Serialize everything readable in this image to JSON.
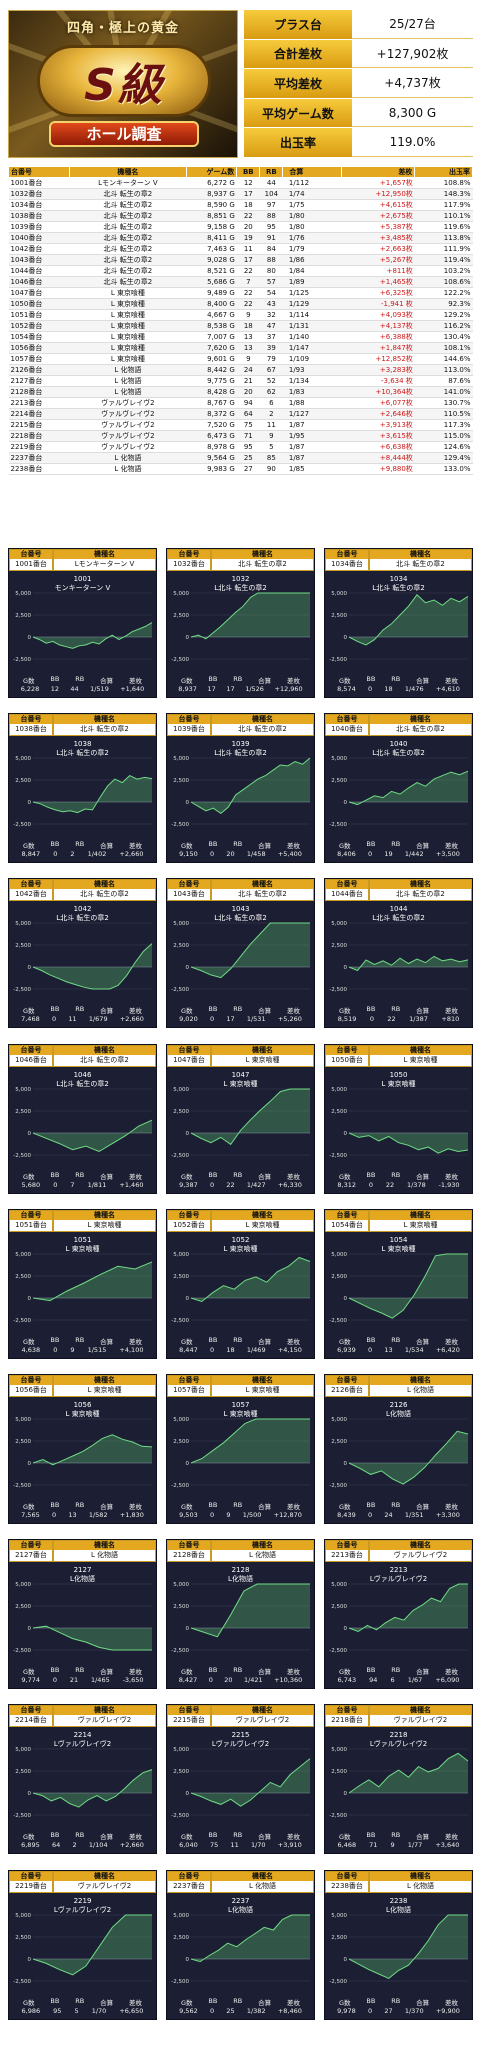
{
  "banner": {
    "subtitle": "四角・極上の黄金",
    "logo_text": "S級",
    "ribbon": "ホール調査"
  },
  "summary": [
    {
      "label": "プラス台",
      "value": "25/27台"
    },
    {
      "label": "合計差枚",
      "value": "+127,902枚"
    },
    {
      "label": "平均差枚",
      "value": "+4,737枚"
    },
    {
      "label": "平均ゲーム数",
      "value": "8,300 G"
    },
    {
      "label": "出玉率",
      "value": "119.0%"
    }
  ],
  "table": {
    "headers": [
      "台番号",
      "機種名",
      "ゲーム数",
      "BB",
      "RB",
      "合算",
      "差枚",
      "出玉率"
    ],
    "rows": [
      [
        "1001番台",
        "Lモンキーターン V",
        "6,272 G",
        "12",
        "44",
        "1/112",
        "+1,657枚",
        "108.8%"
      ],
      [
        "1032番台",
        "北斗 転生の章2",
        "8,937 G",
        "17",
        "104",
        "1/74",
        "+12,950枚",
        "148.3%"
      ],
      [
        "1034番台",
        "北斗 転生の章2",
        "8,590 G",
        "18",
        "97",
        "1/75",
        "+4,615枚",
        "117.9%"
      ],
      [
        "1038番台",
        "北斗 転生の章2",
        "8,851 G",
        "22",
        "88",
        "1/80",
        "+2,675枚",
        "110.1%"
      ],
      [
        "1039番台",
        "北斗 転生の章2",
        "9,158 G",
        "20",
        "95",
        "1/80",
        "+5,387枚",
        "119.6%"
      ],
      [
        "1040番台",
        "北斗 転生の章2",
        "8,411 G",
        "19",
        "91",
        "1/76",
        "+3,485枚",
        "113.8%"
      ],
      [
        "1042番台",
        "北斗 転生の章2",
        "7,463 G",
        "11",
        "84",
        "1/79",
        "+2,663枚",
        "111.9%"
      ],
      [
        "1043番台",
        "北斗 転生の章2",
        "9,028 G",
        "17",
        "88",
        "1/86",
        "+5,267枚",
        "119.4%"
      ],
      [
        "1044番台",
        "北斗 転生の章2",
        "8,521 G",
        "22",
        "80",
        "1/84",
        "+811枚",
        "103.2%"
      ],
      [
        "1046番台",
        "北斗 転生の章2",
        "5,686 G",
        "7",
        "57",
        "1/89",
        "+1,465枚",
        "108.6%"
      ],
      [
        "1047番台",
        "L 東京喰種",
        "9,489 G",
        "22",
        "54",
        "1/125",
        "+6,325枚",
        "122.2%"
      ],
      [
        "1050番台",
        "L 東京喰種",
        "8,400 G",
        "22",
        "43",
        "1/129",
        "-1,941 枚",
        "92.3%"
      ],
      [
        "1051番台",
        "L 東京喰種",
        "4,667 G",
        "9",
        "32",
        "1/114",
        "+4,093枚",
        "129.2%"
      ],
      [
        "1052番台",
        "L 東京喰種",
        "8,538 G",
        "18",
        "47",
        "1/131",
        "+4,137枚",
        "116.2%"
      ],
      [
        "1054番台",
        "L 東京喰種",
        "7,007 G",
        "13",
        "37",
        "1/140",
        "+6,388枚",
        "130.4%"
      ],
      [
        "1056番台",
        "L 東京喰種",
        "7,620 G",
        "13",
        "39",
        "1/147",
        "+1,847枚",
        "108.1%"
      ],
      [
        "1057番台",
        "L 東京喰種",
        "9,601 G",
        "9",
        "79",
        "1/109",
        "+12,852枚",
        "144.6%"
      ],
      [
        "2126番台",
        "L 化物語",
        "8,442 G",
        "24",
        "67",
        "1/93",
        "+3,283枚",
        "113.0%"
      ],
      [
        "2127番台",
        "L 化物語",
        "9,775 G",
        "21",
        "52",
        "1/134",
        "-3,634 枚",
        "87.6%"
      ],
      [
        "2128番台",
        "L 化物語",
        "8,428 G",
        "20",
        "62",
        "1/83",
        "+10,364枚",
        "141.0%"
      ],
      [
        "2213番台",
        "ヴァルヴレイヴ2",
        "8,767 G",
        "94",
        "6",
        "1/88",
        "+6,077枚",
        "130.7%"
      ],
      [
        "2214番台",
        "ヴァルヴレイヴ2",
        "8,372 G",
        "64",
        "2",
        "1/127",
        "+2,646枚",
        "110.5%"
      ],
      [
        "2215番台",
        "ヴァルヴレイヴ2",
        "7,520 G",
        "75",
        "11",
        "1/87",
        "+3,913枚",
        "117.3%"
      ],
      [
        "2218番台",
        "ヴァルヴレイヴ2",
        "6,473 G",
        "71",
        "9",
        "1/95",
        "+3,615枚",
        "115.0%"
      ],
      [
        "2219番台",
        "ヴァルヴレイヴ2",
        "8,978 G",
        "95",
        "5",
        "1/87",
        "+6,638枚",
        "124.6%"
      ],
      [
        "2237番台",
        "L 化物語",
        "9,564 G",
        "25",
        "85",
        "1/87",
        "+8,444枚",
        "129.4%"
      ],
      [
        "2238番台",
        "L 化物語",
        "9,983 G",
        "27",
        "90",
        "1/85",
        "+9,880枚",
        "133.0%"
      ]
    ]
  },
  "card_labels": {
    "no": "台番号",
    "name": "機種名",
    "foot": [
      "G数",
      "BB",
      "RB",
      "合算",
      "差枚"
    ]
  },
  "y_ticks": [
    "5,000",
    "2,500",
    "0",
    "-2,500"
  ],
  "chart_data": [
    {
      "type": "line",
      "machine": "1001番台",
      "model": "Lモンキーターン V",
      "num": "1001",
      "title": "モンキーターン V",
      "stats": [
        "6,228",
        "12",
        "44",
        "1/519",
        "+1,640"
      ],
      "points": [
        0,
        -300,
        -700,
        -500,
        -900,
        -1100,
        -1300,
        -1000,
        -900,
        -600,
        -800,
        -200,
        200,
        -300,
        100,
        600,
        900,
        1200,
        1640
      ],
      "ylim": [
        -2500,
        5000
      ]
    },
    {
      "type": "line",
      "machine": "1032番台",
      "model": "北斗 転生の章2",
      "num": "1032",
      "title": "L北斗 転生の章2",
      "stats": [
        "8,937",
        "17",
        "17",
        "1/526",
        "+12,960"
      ],
      "points": [
        0,
        200,
        -200,
        500,
        1200,
        2000,
        2800,
        3500,
        4500,
        5500,
        7000,
        8000,
        9000,
        10500,
        11000,
        12000,
        12960
      ],
      "ylim": [
        -2500,
        5000
      ]
    },
    {
      "type": "line",
      "machine": "1034番台",
      "model": "北斗 転生の章2",
      "num": "1034",
      "title": "L北斗 転生の章2",
      "stats": [
        "8,574",
        "0",
        "18",
        "1/476",
        "+4,610"
      ],
      "points": [
        0,
        -500,
        -900,
        -300,
        800,
        1500,
        2500,
        3500,
        4800,
        3900,
        4200,
        3600,
        4400,
        4000,
        4610
      ],
      "ylim": [
        -2500,
        5000
      ]
    },
    {
      "type": "line",
      "machine": "1038番台",
      "model": "北斗 転生の章2",
      "num": "1038",
      "title": "L北斗 転生の章2",
      "stats": [
        "8,847",
        "0",
        "2",
        "1/402",
        "+2,660"
      ],
      "points": [
        0,
        -200,
        -600,
        -900,
        -1100,
        -1000,
        -1200,
        -800,
        -900,
        500,
        1800,
        2600,
        2200,
        3000,
        2600,
        2800,
        2660
      ],
      "ylim": [
        -2500,
        5000
      ]
    },
    {
      "type": "line",
      "machine": "1039番台",
      "model": "北斗 転生の章2",
      "num": "1039",
      "title": "L北斗 転生の章2",
      "stats": [
        "9,150",
        "0",
        "20",
        "1/458",
        "+5,400"
      ],
      "points": [
        0,
        -500,
        -1000,
        -700,
        -1300,
        -600,
        800,
        1400,
        2000,
        2600,
        3000,
        3600,
        4200,
        4100,
        4600,
        4300,
        5400
      ],
      "ylim": [
        -2500,
        5000
      ]
    },
    {
      "type": "line",
      "machine": "1040番台",
      "model": "北斗 転生の章2",
      "num": "1040",
      "title": "L北斗 転生の章2",
      "stats": [
        "8,406",
        "0",
        "19",
        "1/442",
        "+3,500"
      ],
      "points": [
        0,
        -300,
        200,
        700,
        500,
        1200,
        900,
        1600,
        2200,
        1800,
        2600,
        3000,
        3400,
        3100,
        3500
      ],
      "ylim": [
        -2500,
        5000
      ]
    },
    {
      "type": "line",
      "machine": "1042番台",
      "model": "北斗 転生の章2",
      "num": "1042",
      "title": "L北斗 転生の章2",
      "stats": [
        "7,468",
        "0",
        "11",
        "1/679",
        "+2,660"
      ],
      "points": [
        0,
        -400,
        -900,
        -1300,
        -1700,
        -2000,
        -2300,
        -2600,
        -2800,
        -2500,
        -2100,
        -1000,
        500,
        1800,
        2660
      ],
      "ylim": [
        -2500,
        5000
      ]
    },
    {
      "type": "line",
      "machine": "1043番台",
      "model": "北斗 転生の章2",
      "num": "1043",
      "title": "L北斗 転生の章2",
      "stats": [
        "9,020",
        "0",
        "17",
        "1/531",
        "+5,260"
      ],
      "points": [
        0,
        -400,
        -900,
        -1200,
        -200,
        1200,
        2600,
        3800,
        5200,
        5100,
        5300,
        5200,
        5260
      ],
      "ylim": [
        -2500,
        5000
      ]
    },
    {
      "type": "line",
      "machine": "1044番台",
      "model": "北斗 転生の章2",
      "num": "1044",
      "title": "L北斗 転生の章2",
      "stats": [
        "8,519",
        "0",
        "22",
        "1/387",
        "+810"
      ],
      "points": [
        0,
        -400,
        800,
        300,
        700,
        200,
        1000,
        400,
        900,
        500,
        1200,
        700,
        900,
        600,
        810
      ],
      "ylim": [
        -2500,
        5000
      ]
    },
    {
      "type": "line",
      "machine": "1046番台",
      "model": "北斗 転生の章2",
      "num": "1046",
      "title": "L北斗 転生の章2",
      "stats": [
        "5,680",
        "0",
        "7",
        "1/811",
        "+1,460"
      ],
      "points": [
        0,
        -600,
        -1200,
        -1900,
        -1500,
        -2100,
        -1200,
        -300,
        800,
        1460
      ],
      "ylim": [
        -2500,
        5000
      ]
    },
    {
      "type": "line",
      "machine": "1047番台",
      "model": "L 東京喰種",
      "num": "1047",
      "title": "L 東京喰種",
      "stats": [
        "9,387",
        "0",
        "22",
        "1/427",
        "+6,330"
      ],
      "points": [
        0,
        -600,
        -1100,
        -500,
        -1300,
        300,
        1500,
        2600,
        3600,
        4700,
        5600,
        6100,
        6330
      ],
      "ylim": [
        -2500,
        5000
      ]
    },
    {
      "type": "line",
      "machine": "1050番台",
      "model": "L 東京喰種",
      "num": "1050",
      "title": "L 東京喰種",
      "stats": [
        "8,312",
        "0",
        "22",
        "1/378",
        "-1,930"
      ],
      "points": [
        0,
        -500,
        -300,
        -900,
        -400,
        -1100,
        -1400,
        -1900,
        -1600,
        -2300,
        -1800,
        -2100,
        -1930
      ],
      "ylim": [
        -2500,
        5000
      ]
    },
    {
      "type": "line",
      "machine": "1051番台",
      "model": "L 東京喰種",
      "num": "1051",
      "title": "L 東京喰種",
      "stats": [
        "4,638",
        "0",
        "9",
        "1/515",
        "+4,100"
      ],
      "points": [
        0,
        -300,
        800,
        1700,
        2700,
        3600,
        3300,
        4100
      ],
      "ylim": [
        -2500,
        5000
      ]
    },
    {
      "type": "line",
      "machine": "1052番台",
      "model": "L 東京喰種",
      "num": "1052",
      "title": "L 東京喰種",
      "stats": [
        "8,447",
        "0",
        "18",
        "1/469",
        "+4,150"
      ],
      "points": [
        0,
        -400,
        600,
        1400,
        1000,
        2000,
        2400,
        1800,
        3000,
        3600,
        4600,
        4150
      ],
      "ylim": [
        -2500,
        5000
      ]
    },
    {
      "type": "line",
      "machine": "1054番台",
      "model": "L 東京喰種",
      "num": "1054",
      "title": "L 東京喰種",
      "stats": [
        "6,939",
        "0",
        "13",
        "1/534",
        "+6,420"
      ],
      "points": [
        0,
        -600,
        -1200,
        -1700,
        -2300,
        -1400,
        300,
        2400,
        4800,
        6100,
        6400,
        6420
      ],
      "ylim": [
        -2500,
        5000
      ]
    },
    {
      "type": "line",
      "machine": "1056番台",
      "model": "L 東京喰種",
      "num": "1056",
      "title": "L 東京喰種",
      "stats": [
        "7,565",
        "0",
        "13",
        "1/582",
        "+1,830"
      ],
      "points": [
        0,
        400,
        -200,
        300,
        800,
        1300,
        2000,
        2800,
        3200,
        2700,
        2400,
        1900,
        1830
      ],
      "ylim": [
        -2500,
        5000
      ]
    },
    {
      "type": "line",
      "machine": "1057番台",
      "model": "L 東京喰種",
      "num": "1057",
      "title": "L 東京喰種",
      "stats": [
        "9,503",
        "0",
        "9",
        "1/500",
        "+12,870"
      ],
      "points": [
        0,
        500,
        1400,
        2300,
        3400,
        4500,
        6000,
        7500,
        9000,
        10500,
        12000,
        12870
      ],
      "ylim": [
        -2500,
        5000
      ]
    },
    {
      "type": "line",
      "machine": "2126番台",
      "model": "L 化物語",
      "num": "2126",
      "title": "L化物語",
      "stats": [
        "8,439",
        "0",
        "24",
        "1/351",
        "+3,300"
      ],
      "points": [
        0,
        -600,
        -1300,
        -900,
        -1800,
        -2400,
        -1600,
        -500,
        900,
        2200,
        3600,
        3300
      ],
      "ylim": [
        -2500,
        5000
      ]
    },
    {
      "type": "line",
      "machine": "2127番台",
      "model": "L 化物語",
      "num": "2127",
      "title": "L化物語",
      "stats": [
        "9,774",
        "0",
        "21",
        "1/465",
        "-3,650"
      ],
      "points": [
        0,
        200,
        -500,
        -1200,
        -1600,
        -2200,
        -2600,
        -3000,
        -3400,
        -3650
      ],
      "ylim": [
        -2500,
        5000
      ]
    },
    {
      "type": "line",
      "machine": "2128番台",
      "model": "L 化物語",
      "num": "2128",
      "title": "L化物語",
      "stats": [
        "8,427",
        "0",
        "20",
        "1/421",
        "+10,360"
      ],
      "points": [
        0,
        -500,
        -1000,
        1500,
        4200,
        6500,
        8200,
        9400,
        10300,
        10360
      ],
      "ylim": [
        -2500,
        5000
      ]
    },
    {
      "type": "line",
      "machine": "2213番台",
      "model": "ヴァルヴレイヴ2",
      "num": "2213",
      "title": "Lヴァルヴレイヴ2",
      "stats": [
        "6,743",
        "94",
        "6",
        "1/67",
        "+6,090"
      ],
      "points": [
        0,
        -400,
        300,
        -200,
        600,
        1200,
        900,
        2000,
        2600,
        3400,
        3000,
        4500,
        5200,
        6090
      ],
      "ylim": [
        -2500,
        5000
      ]
    },
    {
      "type": "line",
      "machine": "2214番台",
      "model": "ヴァルヴレイヴ2",
      "num": "2214",
      "title": "Lヴァルヴレイヴ2",
      "stats": [
        "6,895",
        "64",
        "2",
        "1/104",
        "+2,660"
      ],
      "points": [
        0,
        -300,
        -900,
        -500,
        -1200,
        -1600,
        -800,
        -300,
        -900,
        -400,
        500,
        1500,
        2300,
        2660
      ],
      "ylim": [
        -2500,
        5000
      ]
    },
    {
      "type": "line",
      "machine": "2215番台",
      "model": "ヴァルヴレイヴ2",
      "num": "2215",
      "title": "Lヴァルヴレイヴ2",
      "stats": [
        "6,040",
        "75",
        "11",
        "1/70",
        "+3,910"
      ],
      "points": [
        0,
        -400,
        -900,
        -1300,
        -700,
        -1500,
        -800,
        200,
        1200,
        700,
        2100,
        3000,
        3910
      ],
      "ylim": [
        -2500,
        5000
      ]
    },
    {
      "type": "line",
      "machine": "2218番台",
      "model": "ヴァルヴレイヴ2",
      "num": "2218",
      "title": "Lヴァルヴレイヴ2",
      "stats": [
        "6,468",
        "71",
        "9",
        "1/77",
        "+3,640"
      ],
      "points": [
        0,
        800,
        1500,
        700,
        1900,
        2600,
        1800,
        3000,
        2400,
        2800,
        3900,
        4500,
        3640
      ],
      "ylim": [
        -2500,
        5000
      ]
    },
    {
      "type": "line",
      "machine": "2219番台",
      "model": "ヴァルヴレイヴ2",
      "num": "2219",
      "title": "Lヴァルヴレイヴ2",
      "stats": [
        "6,986",
        "95",
        "5",
        "1/70",
        "+6,650"
      ],
      "points": [
        0,
        -500,
        -1200,
        -1800,
        -800,
        1400,
        3600,
        5000,
        6100,
        6650
      ],
      "ylim": [
        -2500,
        5000
      ]
    },
    {
      "type": "line",
      "machine": "2237番台",
      "model": "L 化物語",
      "num": "2237",
      "title": "L化物語",
      "stats": [
        "9,562",
        "0",
        "25",
        "1/382",
        "+8,460"
      ],
      "points": [
        0,
        -300,
        400,
        1000,
        1800,
        1400,
        2200,
        2900,
        3600,
        3300,
        4500,
        6000,
        7400,
        8460
      ],
      "ylim": [
        -2500,
        5000
      ]
    },
    {
      "type": "line",
      "machine": "2238番台",
      "model": "L 化物語",
      "num": "2238",
      "title": "L化物語",
      "stats": [
        "9,978",
        "0",
        "27",
        "1/370",
        "+9,900"
      ],
      "points": [
        0,
        -600,
        -1200,
        -1700,
        -2200,
        -1300,
        -700,
        600,
        2100,
        3900,
        5800,
        8000,
        9900
      ],
      "ylim": [
        -2500,
        5000
      ]
    }
  ]
}
